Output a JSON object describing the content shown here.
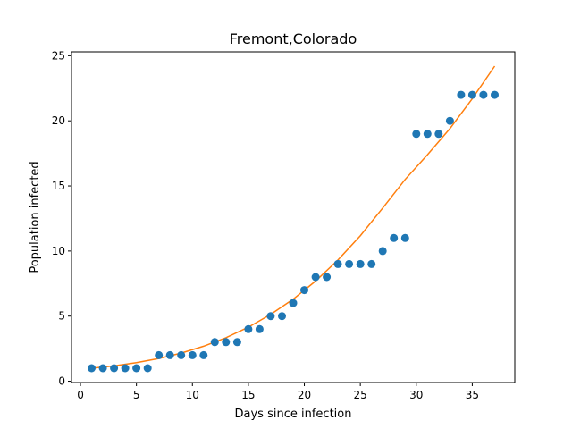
{
  "chart_data": {
    "type": "scatter",
    "title": "Fremont,Colorado",
    "xlabel": "Days since infection",
    "ylabel": "Population infected",
    "xlim": [
      -0.8,
      38.8
    ],
    "ylim": [
      -0.1,
      25.3
    ],
    "xticks": [
      0,
      5,
      10,
      15,
      20,
      25,
      30,
      35
    ],
    "yticks": [
      0,
      5,
      10,
      15,
      20,
      25
    ],
    "grid": false,
    "series": [
      {
        "kind": "scatter",
        "color": "#1f77b4",
        "x": [
          1,
          2,
          3,
          4,
          5,
          6,
          7,
          8,
          9,
          10,
          11,
          12,
          13,
          14,
          15,
          16,
          17,
          18,
          19,
          20,
          21,
          22,
          23,
          24,
          25,
          26,
          27,
          28,
          29,
          30,
          31,
          32,
          33,
          34,
          35,
          36,
          37
        ],
        "y": [
          1,
          1,
          1,
          1,
          1,
          1,
          2,
          2,
          2,
          2,
          2,
          3,
          3,
          3,
          4,
          4,
          5,
          5,
          6,
          7,
          8,
          8,
          9,
          9,
          9,
          9,
          10,
          11,
          11,
          19,
          19,
          19,
          20,
          22,
          22,
          22,
          22
        ]
      },
      {
        "kind": "line",
        "color": "#ff7f0e",
        "x": [
          1,
          3,
          5,
          7,
          9,
          11,
          13,
          15,
          17,
          19,
          21,
          23,
          25,
          27,
          29,
          31,
          33,
          35,
          37
        ],
        "y": [
          1.0,
          1.18,
          1.43,
          1.75,
          2.16,
          2.69,
          3.34,
          4.15,
          5.13,
          6.3,
          7.69,
          9.31,
          11.18,
          13.3,
          15.5,
          17.4,
          19.4,
          21.7,
          24.2
        ]
      }
    ]
  }
}
